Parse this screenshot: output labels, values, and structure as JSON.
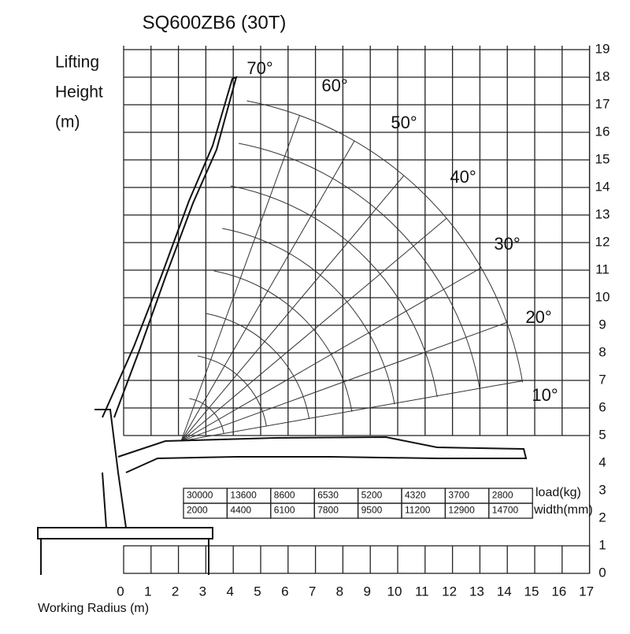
{
  "title": "SQ600ZB6 (30T)",
  "y_axis_label": [
    "Lifting",
    "Height",
    "(m)"
  ],
  "x_axis_label": "Working Radius (m)",
  "x_ticks": [
    "0",
    "1",
    "2",
    "3",
    "4",
    "5",
    "6",
    "7",
    "8",
    "9",
    "10",
    "11",
    "12",
    "13",
    "14",
    "15",
    "16",
    "17"
  ],
  "y_ticks": [
    "0",
    "1",
    "2",
    "3",
    "4",
    "5",
    "6",
    "7",
    "8",
    "9",
    "10",
    "11",
    "12",
    "13",
    "14",
    "15",
    "16",
    "17",
    "18",
    "19"
  ],
  "angles": [
    "10°",
    "20°",
    "30°",
    "40°",
    "50°",
    "60°",
    "70°"
  ],
  "table": {
    "loads": [
      "30000",
      "13600",
      "8600",
      "6530",
      "5200",
      "4320",
      "3700",
      "2800"
    ],
    "widths": [
      "2000",
      "4400",
      "6100",
      "7800",
      "9500",
      "11200",
      "12900",
      "14700"
    ],
    "load_label": "load(kg)",
    "width_label": "width(mm)"
  }
}
